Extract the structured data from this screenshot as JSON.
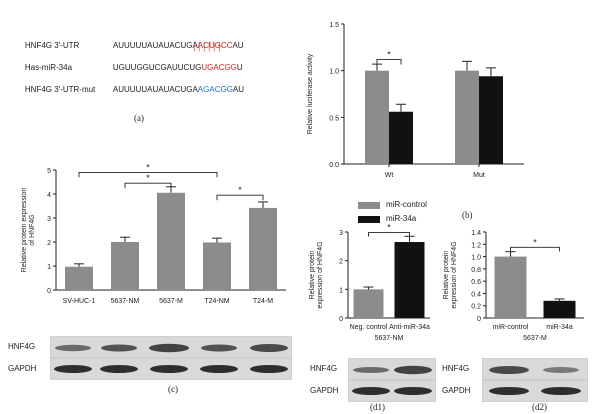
{
  "panel_a": {
    "letter": "(a)",
    "rows": [
      {
        "name": "HNF4G 3′-UTR",
        "seq_prefix": "AUUUUUAUAUACUGA",
        "seq_highlight": "ACUGCC",
        "seq_suffix": "AU",
        "highlight_color": "#d62020"
      },
      {
        "name": "Has-miR-34a",
        "seq_prefix": "UGUUGGUCGAUUCUG",
        "seq_highlight": "UGACGG",
        "seq_suffix": "U",
        "highlight_color": "#d62020"
      },
      {
        "name": "HNF4G 3′-UTR-mut",
        "seq_prefix": "AUUUUUAUAUACUGA",
        "seq_highlight": "AGACGG",
        "seq_suffix": "AU",
        "highlight_color": "#1f6fd0"
      }
    ]
  },
  "panel_b": {
    "letter": "(b)"
  },
  "panel_c": {
    "letter": "(c)"
  },
  "panel_d1": {
    "letter": "(d1)",
    "group_label": "5637-NM"
  },
  "panel_d2": {
    "letter": "(d2)",
    "group_label": "5637-M"
  },
  "legend": {
    "items": [
      {
        "name": "miR-control",
        "color": "#8c8c8c"
      },
      {
        "name": "miR-34a",
        "color": "#111111"
      }
    ]
  },
  "blots": {
    "top_label": "HNF4G",
    "bottom_label": "GAPDH"
  },
  "chart_data": [
    {
      "id": "b",
      "type": "bar",
      "categories": [
        "Wt",
        "Mut"
      ],
      "series": [
        {
          "name": "miR-control",
          "values": [
            1.0,
            1.0
          ],
          "errors": [
            0.07,
            0.1
          ]
        },
        {
          "name": "miR-34a",
          "values": [
            0.56,
            0.94
          ],
          "errors": [
            0.08,
            0.09
          ]
        }
      ],
      "ylabel": "Relative luciferase activity",
      "ylim": [
        0,
        1.5
      ],
      "yticks": [
        "0.0",
        "0.5",
        "1.0",
        "1.5"
      ],
      "significance": [
        {
          "label": "*"
        }
      ]
    },
    {
      "id": "c",
      "type": "bar",
      "categories": [
        "SV-HUC-1",
        "5637-NM",
        "5637-M",
        "T24-NM",
        "T24-M"
      ],
      "values": [
        0.97,
        2.0,
        4.05,
        1.98,
        3.42
      ],
      "errors": [
        0.12,
        0.2,
        0.25,
        0.18,
        0.25
      ],
      "ylabel": "Relative protein expression of HNF4G",
      "ylim": [
        0,
        5
      ],
      "yticks": [
        "0",
        "1",
        "2",
        "3",
        "4",
        "5"
      ],
      "significance": [
        {
          "label": "*"
        },
        {
          "label": "*"
        },
        {
          "label": "*"
        }
      ]
    },
    {
      "id": "d1",
      "type": "bar",
      "categories": [
        "Neg. control",
        "Anti-miR-34a"
      ],
      "values": [
        1.0,
        2.65
      ],
      "errors": [
        0.08,
        0.2
      ],
      "ylabel": "Relative protein expression of HNF4G",
      "ylim": [
        0,
        3
      ],
      "yticks": [
        "0",
        "1",
        "2",
        "3"
      ],
      "significance": [
        {
          "label": "*"
        }
      ]
    },
    {
      "id": "d2",
      "type": "bar",
      "categories": [
        "miR-control",
        "miR-34a"
      ],
      "values": [
        1.0,
        0.28
      ],
      "errors": [
        0.08,
        0.03
      ],
      "ylabel": "Relative protein expression of HNF4G",
      "ylim": [
        0,
        1.4
      ],
      "yticks": [
        "0",
        "0.2",
        "0.4",
        "0.6",
        "0.8",
        "1.0",
        "1.2",
        "1.4"
      ],
      "significance": [
        {
          "label": "*"
        }
      ]
    }
  ]
}
